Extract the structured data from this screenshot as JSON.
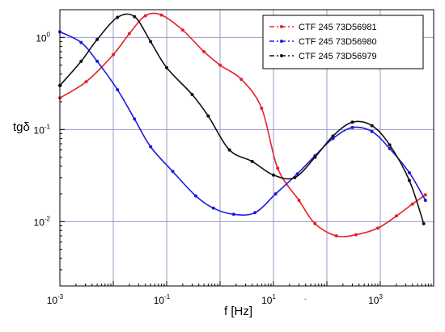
{
  "chart_data": {
    "type": "line",
    "x_scale": "log",
    "y_scale": "log",
    "xlim": [
      0.001,
      10000
    ],
    "ylim": [
      0.002,
      2
    ],
    "xlabel": "f [Hz]",
    "ylabel": "tgδ",
    "grid": true,
    "legend_position": "top-right",
    "x_ticks": [
      {
        "base": "10",
        "exp": "-3",
        "value": 0.001
      },
      {
        "base": "10",
        "exp": "-1",
        "value": 0.1
      },
      {
        "base": "10",
        "exp": "1",
        "value": 10
      },
      {
        "base": "10",
        "exp": "3",
        "value": 1000
      }
    ],
    "y_ticks": [
      {
        "base": "10",
        "exp": "0",
        "value": 1
      },
      {
        "base": "10",
        "exp": "-1",
        "value": 0.1
      },
      {
        "base": "10",
        "exp": "-2",
        "value": 0.01
      }
    ],
    "series": [
      {
        "name": "CTF 245 73D56981",
        "color": "#e8202a",
        "points": [
          [
            0.001,
            0.22
          ],
          [
            0.0031,
            0.33
          ],
          [
            0.01,
            0.65
          ],
          [
            0.02,
            1.1
          ],
          [
            0.04,
            1.72
          ],
          [
            0.08,
            1.75
          ],
          [
            0.2,
            1.2
          ],
          [
            0.5,
            0.7
          ],
          [
            1.0,
            0.5
          ],
          [
            2.5,
            0.35
          ],
          [
            6.0,
            0.17
          ],
          [
            12.0,
            0.038
          ],
          [
            30.0,
            0.017
          ],
          [
            60.0,
            0.0095
          ],
          [
            150.0,
            0.007
          ],
          [
            350.0,
            0.0072
          ],
          [
            900.0,
            0.0085
          ],
          [
            2000.0,
            0.0115
          ],
          [
            4000.0,
            0.0155
          ],
          [
            7000.0,
            0.0195
          ]
        ]
      },
      {
        "name": "CTF 245 73D56980",
        "color": "#1c1ce0",
        "points": [
          [
            0.001,
            1.15
          ],
          [
            0.0025,
            0.88
          ],
          [
            0.005,
            0.55
          ],
          [
            0.012,
            0.27
          ],
          [
            0.025,
            0.13
          ],
          [
            0.05,
            0.065
          ],
          [
            0.13,
            0.035
          ],
          [
            0.35,
            0.019
          ],
          [
            0.75,
            0.014
          ],
          [
            1.8,
            0.012
          ],
          [
            4.5,
            0.0125
          ],
          [
            11.0,
            0.02
          ],
          [
            28.0,
            0.033
          ],
          [
            60.0,
            0.052
          ],
          [
            130.0,
            0.08
          ],
          [
            300.0,
            0.105
          ],
          [
            700.0,
            0.095
          ],
          [
            1500.0,
            0.062
          ],
          [
            3500.0,
            0.034
          ],
          [
            7000.0,
            0.017
          ]
        ]
      },
      {
        "name": "CTF 245 73D56979",
        "color": "#111111",
        "points": [
          [
            0.001,
            0.3
          ],
          [
            0.0025,
            0.55
          ],
          [
            0.005,
            0.95
          ],
          [
            0.012,
            1.65
          ],
          [
            0.025,
            1.68
          ],
          [
            0.05,
            0.9
          ],
          [
            0.1,
            0.47
          ],
          [
            0.3,
            0.24
          ],
          [
            0.6,
            0.14
          ],
          [
            1.5,
            0.06
          ],
          [
            4.0,
            0.045
          ],
          [
            10.0,
            0.032
          ],
          [
            25.0,
            0.03
          ],
          [
            60.0,
            0.05
          ],
          [
            130.0,
            0.085
          ],
          [
            300.0,
            0.12
          ],
          [
            700.0,
            0.11
          ],
          [
            1500.0,
            0.068
          ],
          [
            3500.0,
            0.028
          ],
          [
            6500.0,
            0.0095
          ]
        ]
      }
    ],
    "stray_mark": "-"
  }
}
